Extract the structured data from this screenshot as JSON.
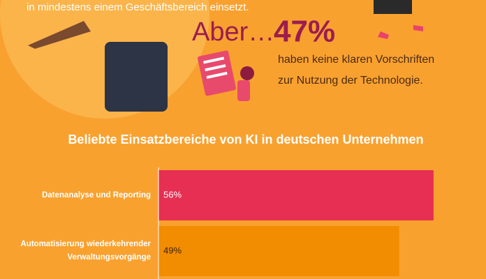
{
  "header": {
    "intro_tail": "in mindestens einem Geschäftsbereich einsetzt.",
    "highlight": {
      "lead": "Aber…",
      "value": "47%",
      "text_lines": [
        "haben keine klaren Vorschriften",
        "zur Nutzung der Technologie."
      ]
    }
  },
  "chart_data": {
    "type": "bar",
    "orientation": "horizontal",
    "title": "Beliebte Einsatzbereiche von KI in deutschen Unternehmen",
    "categories": [
      "Datenanalyse und Reporting",
      "Automatisierung wiederkehrender Verwaltungsvorgänge"
    ],
    "values": [
      56,
      49
    ],
    "value_labels": [
      "56%",
      "49%"
    ],
    "colors": [
      "#e62f52",
      "#f28c00"
    ],
    "value_label_colors": [
      "#ffffff",
      "#3a2410"
    ],
    "xlim": [
      0,
      60
    ]
  }
}
